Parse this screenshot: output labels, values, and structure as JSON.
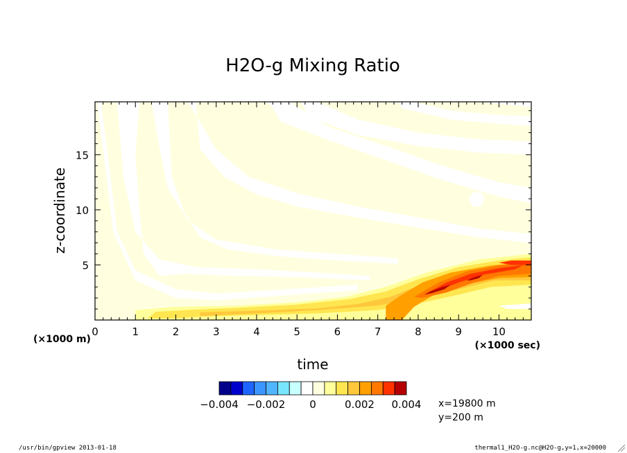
{
  "chart_data": {
    "type": "heatmap",
    "title": "H2O-g Mixing Ratio",
    "xlabel": "time",
    "ylabel": "z-coordinate",
    "x_unit_note": "(×1000 sec)",
    "y_unit_note": "(×1000 m)",
    "xlim": [
      0,
      10.8
    ],
    "ylim": [
      0,
      19.8
    ],
    "x_ticks": [
      "0",
      "1",
      "2",
      "3",
      "4",
      "5",
      "6",
      "7",
      "8",
      "9",
      "10"
    ],
    "y_ticks": [
      "5",
      "10",
      "15"
    ],
    "colorbar": {
      "levels": [
        -0.004,
        -0.0035,
        -0.003,
        -0.0025,
        -0.002,
        -0.0015,
        -0.001,
        -0.0005,
        0,
        0.0005,
        0.001,
        0.0015,
        0.002,
        0.0025,
        0.003,
        0.0035,
        0.004
      ],
      "tick_labels": [
        "-0.004",
        "-0.002",
        "0",
        "0.002",
        "0.004"
      ],
      "tick_values": [
        -0.004,
        -0.002,
        0,
        0.002,
        0.004
      ],
      "colors": [
        "#00008b",
        "#0000cd",
        "#1e64ff",
        "#3c96ff",
        "#50b4ff",
        "#78e6ff",
        "#c8ffff",
        "#ffffff",
        "#ffffe0",
        "#ffff9b",
        "#ffe650",
        "#ffc83c",
        "#ffa000",
        "#ff7800",
        "#ff3200",
        "#b40000"
      ]
    },
    "features": [
      {
        "kind": "band",
        "level": -0.0005,
        "points": [
          [
            0.15,
            19.8
          ],
          [
            0.35,
            14.0
          ],
          [
            0.55,
            8.0
          ],
          [
            1.0,
            4.5
          ],
          [
            2.0,
            2.8
          ],
          [
            3.0,
            2.4
          ],
          [
            6.5,
            3.2
          ],
          [
            6.5,
            2.7
          ],
          [
            3.0,
            1.8
          ],
          [
            2.0,
            2.0
          ],
          [
            1.0,
            3.6
          ],
          [
            0.45,
            8.0
          ],
          [
            0.25,
            14.0
          ],
          [
            0.05,
            19.8
          ]
        ]
      },
      {
        "kind": "band",
        "level": -0.0005,
        "points": [
          [
            0.55,
            19.8
          ],
          [
            0.7,
            13.0
          ],
          [
            1.0,
            8.0
          ],
          [
            1.6,
            5.5
          ],
          [
            2.5,
            4.8
          ],
          [
            4.0,
            4.6
          ],
          [
            5.5,
            4.3
          ],
          [
            6.8,
            4.0
          ],
          [
            6.8,
            3.6
          ],
          [
            5.0,
            3.9
          ],
          [
            3.5,
            4.0
          ],
          [
            2.2,
            4.2
          ],
          [
            1.6,
            4.0
          ],
          [
            1.2,
            6.0
          ],
          [
            1.1,
            10.0
          ],
          [
            1.0,
            15.0
          ],
          [
            1.1,
            19.8
          ]
        ]
      },
      {
        "kind": "band",
        "level": -0.0005,
        "points": [
          [
            1.4,
            19.8
          ],
          [
            1.6,
            15.5
          ],
          [
            1.8,
            12.0
          ],
          [
            2.3,
            9.0
          ],
          [
            3.0,
            7.3
          ],
          [
            4.5,
            6.4
          ],
          [
            6.0,
            6.0
          ],
          [
            7.5,
            5.6
          ],
          [
            7.5,
            5.1
          ],
          [
            6.0,
            5.4
          ],
          [
            4.5,
            5.8
          ],
          [
            3.3,
            6.4
          ],
          [
            2.6,
            7.5
          ],
          [
            2.2,
            9.8
          ],
          [
            1.9,
            13.0
          ],
          [
            1.8,
            19.8
          ]
        ]
      },
      {
        "kind": "band",
        "level": -0.0005,
        "points": [
          [
            2.3,
            19.8
          ],
          [
            3.0,
            15.5
          ],
          [
            3.8,
            13.0
          ],
          [
            5.0,
            11.5
          ],
          [
            6.5,
            10.3
          ],
          [
            8.0,
            9.3
          ],
          [
            9.5,
            8.3
          ],
          [
            10.8,
            7.8
          ],
          [
            10.8,
            7.0
          ],
          [
            9.5,
            7.5
          ],
          [
            8.0,
            8.4
          ],
          [
            6.5,
            9.3
          ],
          [
            5.0,
            10.3
          ],
          [
            4.0,
            11.4
          ],
          [
            3.2,
            13.0
          ],
          [
            2.6,
            15.5
          ],
          [
            2.5,
            19.8
          ]
        ]
      },
      {
        "kind": "band",
        "level": -0.0005,
        "points": [
          [
            4.8,
            19.8
          ],
          [
            5.8,
            17.5
          ],
          [
            7.2,
            15.8
          ],
          [
            8.6,
            14.0
          ],
          [
            10.0,
            12.5
          ],
          [
            10.8,
            12.0
          ],
          [
            10.8,
            10.6
          ],
          [
            10.0,
            11.2
          ],
          [
            8.6,
            12.7
          ],
          [
            7.2,
            14.5
          ],
          [
            5.8,
            16.3
          ],
          [
            4.6,
            18.0
          ],
          [
            4.3,
            19.8
          ]
        ]
      },
      {
        "kind": "band",
        "level": -0.0005,
        "points": [
          [
            5.5,
            19.8
          ],
          [
            6.5,
            18.2
          ],
          [
            8.0,
            17.0
          ],
          [
            9.5,
            16.4
          ],
          [
            10.8,
            16.2
          ],
          [
            10.8,
            15.0
          ],
          [
            9.5,
            15.2
          ],
          [
            8.0,
            15.8
          ],
          [
            6.5,
            16.8
          ],
          [
            5.3,
            18.4
          ],
          [
            5.1,
            19.8
          ]
        ]
      },
      {
        "kind": "band",
        "level": -0.0005,
        "points": [
          [
            7.9,
            19.8
          ],
          [
            8.8,
            19.0
          ],
          [
            10.0,
            18.6
          ],
          [
            10.8,
            18.5
          ],
          [
            10.8,
            17.6
          ],
          [
            10.0,
            17.8
          ],
          [
            8.8,
            18.2
          ],
          [
            7.6,
            19.2
          ],
          [
            7.5,
            19.8
          ]
        ]
      },
      {
        "kind": "band",
        "level": -0.0005,
        "points": [
          [
            9.5,
            19.8
          ],
          [
            10.8,
            19.3
          ],
          [
            10.8,
            19.8
          ]
        ]
      },
      {
        "kind": "band",
        "level": -0.0005,
        "points": [
          [
            4.2,
            19.8
          ],
          [
            4.5,
            19.4
          ],
          [
            4.9,
            19.6
          ],
          [
            4.9,
            19.8
          ]
        ]
      },
      {
        "kind": "band",
        "level": -0.0005,
        "points": [
          [
            9.35,
            11.6
          ],
          [
            9.55,
            11.6
          ],
          [
            9.65,
            11.0
          ],
          [
            9.55,
            10.3
          ],
          [
            9.35,
            10.3
          ],
          [
            9.25,
            11.0
          ]
        ]
      },
      {
        "kind": "band",
        "level": 0.0005,
        "points": [
          [
            1.0,
            0.0
          ],
          [
            1.0,
            0.9
          ],
          [
            2.0,
            1.2
          ],
          [
            3.5,
            1.3
          ],
          [
            5.0,
            1.6
          ],
          [
            6.2,
            2.1
          ],
          [
            7.2,
            3.0
          ],
          [
            8.2,
            4.3
          ],
          [
            9.5,
            5.5
          ],
          [
            10.8,
            6.0
          ],
          [
            10.8,
            0.0
          ]
        ]
      },
      {
        "kind": "band",
        "level": 0.001,
        "points": [
          [
            1.3,
            0.15
          ],
          [
            1.5,
            0.75
          ],
          [
            2.5,
            0.95
          ],
          [
            3.5,
            1.1
          ],
          [
            5.0,
            1.4
          ],
          [
            6.3,
            1.9
          ],
          [
            7.2,
            2.6
          ],
          [
            8.0,
            3.7
          ],
          [
            9.0,
            4.8
          ],
          [
            10.0,
            5.4
          ],
          [
            10.8,
            5.7
          ],
          [
            10.8,
            3.2
          ],
          [
            9.8,
            3.0
          ],
          [
            9.0,
            2.3
          ],
          [
            8.0,
            1.5
          ],
          [
            7.0,
            0.9
          ],
          [
            5.5,
            0.6
          ],
          [
            4.0,
            0.45
          ],
          [
            2.6,
            0.3
          ],
          [
            2.0,
            0.15
          ]
        ]
      },
      {
        "kind": "band",
        "level": 0.0015,
        "points": [
          [
            2.6,
            0.35
          ],
          [
            2.6,
            0.7
          ],
          [
            4.0,
            0.85
          ],
          [
            5.5,
            1.05
          ],
          [
            6.5,
            1.45
          ],
          [
            7.3,
            2.1
          ],
          [
            8.0,
            3.1
          ],
          [
            8.8,
            4.2
          ],
          [
            9.8,
            4.9
          ],
          [
            10.8,
            5.3
          ],
          [
            10.8,
            3.6
          ],
          [
            9.9,
            3.6
          ],
          [
            9.0,
            2.8
          ],
          [
            8.0,
            2.0
          ],
          [
            7.0,
            1.3
          ],
          [
            5.5,
            0.9
          ],
          [
            4.0,
            0.6
          ]
        ]
      },
      {
        "kind": "band",
        "level": 0.002,
        "points": [
          [
            7.2,
            0.0
          ],
          [
            7.2,
            1.3
          ],
          [
            7.6,
            2.3
          ],
          [
            8.1,
            3.4
          ],
          [
            8.8,
            4.3
          ],
          [
            9.8,
            4.95
          ],
          [
            10.8,
            5.3
          ],
          [
            10.8,
            3.9
          ],
          [
            10.0,
            3.8
          ],
          [
            9.1,
            3.2
          ],
          [
            8.4,
            2.3
          ],
          [
            7.9,
            1.2
          ],
          [
            7.6,
            0.0
          ]
        ]
      },
      {
        "kind": "band",
        "level": 0.0025,
        "points": [
          [
            7.9,
            2.1
          ],
          [
            8.5,
            3.4
          ],
          [
            9.2,
            4.4
          ],
          [
            10.0,
            4.95
          ],
          [
            10.8,
            5.2
          ],
          [
            10.8,
            4.2
          ],
          [
            10.0,
            4.0
          ],
          [
            9.3,
            3.3
          ],
          [
            8.7,
            2.5
          ],
          [
            8.1,
            2.0
          ]
        ]
      },
      {
        "kind": "band",
        "level": 0.003,
        "points": [
          [
            8.3,
            2.6
          ],
          [
            8.7,
            3.4
          ],
          [
            9.3,
            4.2
          ],
          [
            10.0,
            4.7
          ],
          [
            10.6,
            5.0
          ],
          [
            10.4,
            4.6
          ],
          [
            9.6,
            4.1
          ],
          [
            9.0,
            3.4
          ],
          [
            8.5,
            2.7
          ]
        ]
      },
      {
        "kind": "band",
        "level": 0.003,
        "points": [
          [
            10.0,
            5.2
          ],
          [
            10.3,
            5.4
          ],
          [
            10.8,
            5.4
          ],
          [
            10.8,
            5.0
          ],
          [
            10.3,
            5.0
          ]
        ]
      },
      {
        "kind": "band",
        "level": 0.0035,
        "points": [
          [
            8.15,
            2.3
          ],
          [
            8.3,
            2.6
          ],
          [
            8.6,
            3.0
          ],
          [
            8.8,
            3.2
          ],
          [
            8.65,
            2.8
          ],
          [
            8.35,
            2.45
          ]
        ]
      },
      {
        "kind": "band",
        "level": 0.0035,
        "points": [
          [
            9.2,
            3.6
          ],
          [
            9.4,
            3.9
          ],
          [
            9.6,
            4.1
          ],
          [
            9.5,
            3.8
          ],
          [
            9.3,
            3.6
          ]
        ]
      },
      {
        "kind": "band",
        "level": -0.0005,
        "points": [
          [
            10.0,
            1.3
          ],
          [
            10.8,
            1.5
          ],
          [
            10.8,
            1.0
          ],
          [
            10.2,
            1.0
          ]
        ]
      },
      {
        "kind": "band",
        "level": 0.0005,
        "points": [
          [
            10.2,
            0.6
          ],
          [
            10.8,
            0.8
          ],
          [
            10.8,
            0.3
          ],
          [
            10.4,
            0.3
          ]
        ]
      }
    ]
  },
  "info": {
    "x_position": "x=19800 m",
    "y_position": "y=200 m"
  },
  "footer": {
    "left": "/usr/bin/gpview  2013-01-18",
    "right": "thermal1_H2O-g.nc@H2O-g,y=1,x=20000"
  }
}
